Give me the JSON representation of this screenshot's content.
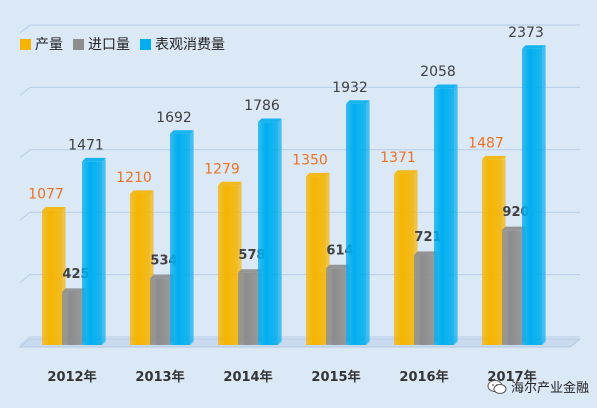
{
  "chart_data": {
    "type": "bar",
    "categories": [
      "2012年",
      "2013年",
      "2014年",
      "2015年",
      "2016年",
      "2017年"
    ],
    "series": [
      {
        "name": "产量",
        "values": [
          1077,
          1210,
          1279,
          1350,
          1371,
          1487
        ],
        "color": "#f5b400",
        "label_color": "#f07020"
      },
      {
        "name": "进口量",
        "values": [
          425,
          534,
          578,
          614,
          721,
          920
        ],
        "color": "#8c8c8c",
        "label_color": "#404040"
      },
      {
        "name": "表观消费量",
        "values": [
          1471,
          1692,
          1786,
          1932,
          2058,
          2373
        ],
        "color": "#00aeef",
        "label_color": "#404040"
      }
    ],
    "title": "",
    "xlabel": "",
    "ylabel": "",
    "ylim": [
      0,
      2500
    ],
    "grid": true,
    "legend": "top-left"
  },
  "watermark": {
    "text": "海尔产业金融",
    "icon": "wechat-icon"
  }
}
